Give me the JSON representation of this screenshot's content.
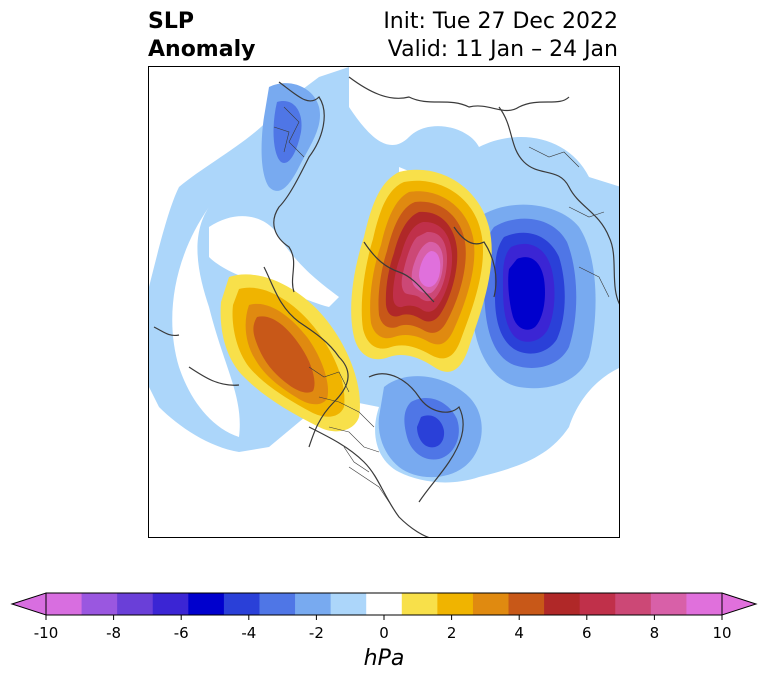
{
  "title": {
    "left_line1": "SLP",
    "left_line2": "Anomaly",
    "right_line1": "Init: Tue 27 Dec 2022",
    "right_line2": "Valid: 11 Jan – 24 Jan"
  },
  "colorbar": {
    "unit": "hPa",
    "ticks": [
      "-10",
      "-8",
      "-6",
      "-4",
      "-2",
      "0",
      "2",
      "4",
      "6",
      "8",
      "10"
    ],
    "colors": [
      "#d86ee0",
      "#9a57e0",
      "#6a3fd8",
      "#3b25d4",
      "#0000cd",
      "#2a40d8",
      "#4f76e6",
      "#78aaf0",
      "#acd6fa",
      "#ffffff",
      "#f8e04a",
      "#f0b400",
      "#e08a10",
      "#c85818",
      "#b02828",
      "#c0304a",
      "#cc4876",
      "#d860a8",
      "#e070dc"
    ],
    "extend": "both"
  },
  "map": {
    "region": "Northern Hemisphere polar view",
    "features": [
      "positive anomaly over Greenland/Arctic",
      "positive anomaly over Gulf of Alaska",
      "negative anomaly over northwest Russia",
      "negative anomaly over eastern Canada"
    ]
  }
}
